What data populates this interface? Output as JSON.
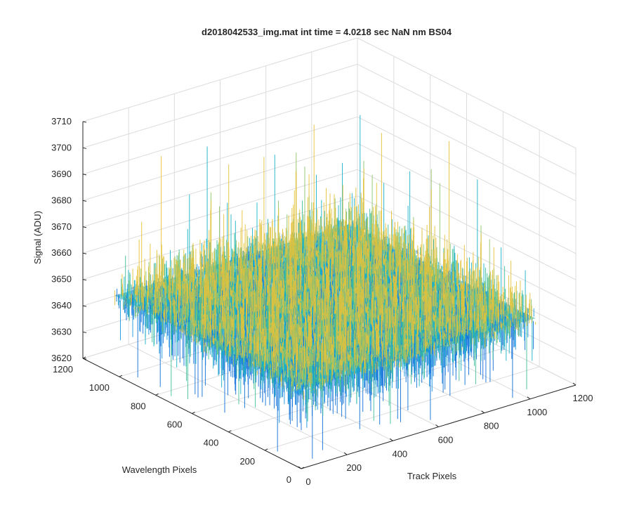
{
  "chart_data": {
    "type": "surface",
    "title": "d2018042533_img.mat int time = 4.0218 sec  NaN nm BS04",
    "xlabel": "Track Pixels",
    "ylabel": "Wavelength Pixels",
    "zlabel": "Signal (ADU)",
    "xlim": [
      0,
      1200
    ],
    "ylim": [
      0,
      1200
    ],
    "zlim": [
      3620,
      3710
    ],
    "x_ticks": [
      "0",
      "200",
      "400",
      "600",
      "800",
      "1000",
      "1200"
    ],
    "y_ticks": [
      "0",
      "200",
      "400",
      "600",
      "800",
      "1000",
      "1200"
    ],
    "z_ticks": [
      "3620",
      "3630",
      "3640",
      "3650",
      "3660",
      "3670",
      "3680",
      "3690",
      "3700",
      "3710"
    ],
    "data_extent": {
      "x": [
        0,
        1024
      ],
      "y": [
        0,
        1024
      ]
    },
    "signal_summary": {
      "mean": 3650,
      "min": 3622,
      "max": 3706
    },
    "grid": true,
    "colormap": [
      "#0d6fd8",
      "#1696e0",
      "#19b3c6",
      "#3fbf99",
      "#8ec46a",
      "#e4c23a"
    ]
  }
}
